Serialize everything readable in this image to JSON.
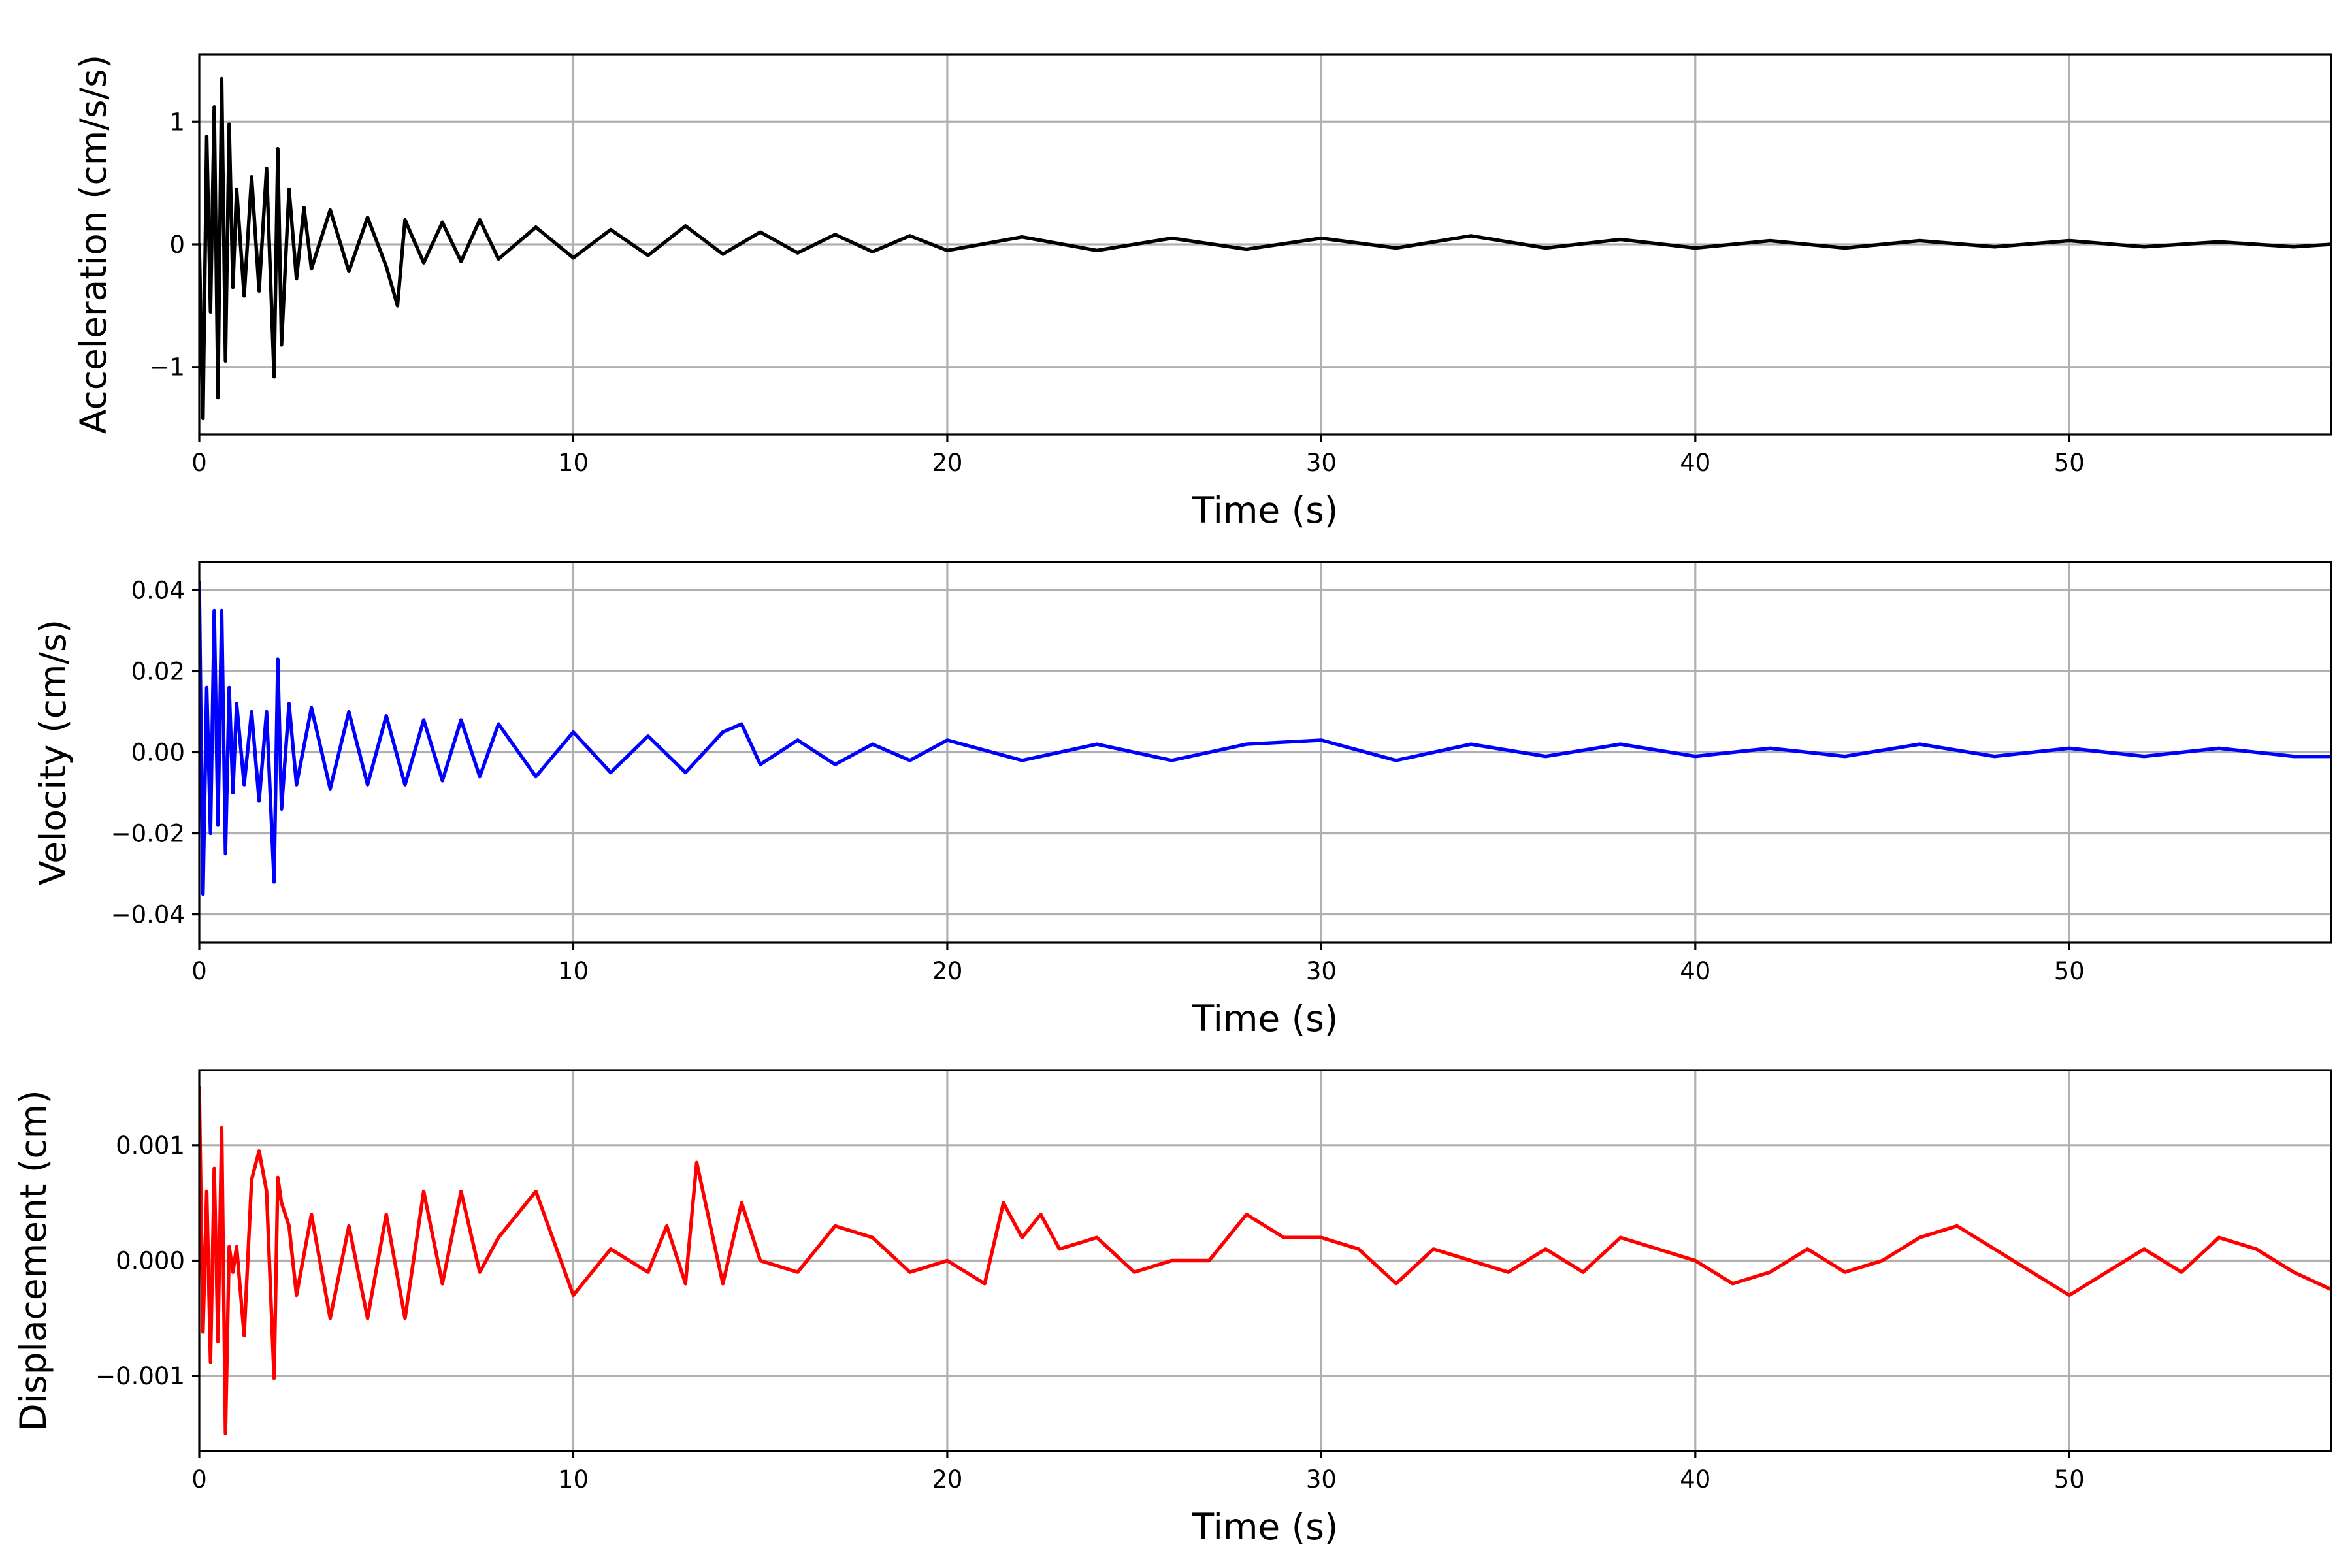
{
  "chart_data": [
    {
      "type": "line",
      "xlabel": "Time (s)",
      "ylabel": "Acceleration (cm/s/s)",
      "xlim": [
        0,
        57
      ],
      "ylim": [
        -1.55,
        1.55
      ],
      "xticks": [
        0,
        10,
        20,
        30,
        40,
        50
      ],
      "xtick_labels": [
        "0",
        "10",
        "20",
        "30",
        "40",
        "50"
      ],
      "yticks": [
        -1,
        0,
        1
      ],
      "ytick_labels": [
        "−1",
        "0",
        "1"
      ],
      "grid": true,
      "color": "#000000",
      "series": [
        {
          "x": [
            0,
            0.1,
            0.2,
            0.3,
            0.4,
            0.5,
            0.6,
            0.7,
            0.8,
            0.9,
            1.0,
            1.2,
            1.4,
            1.6,
            1.8,
            2.0,
            2.1,
            2.2,
            2.4,
            2.6,
            2.8,
            3.0,
            3.5,
            4.0,
            4.5,
            5.0,
            5.3,
            5.5,
            6.0,
            6.5,
            7.0,
            7.5,
            8.0,
            9.0,
            10,
            11,
            12,
            13,
            14,
            15,
            16,
            17,
            18,
            19,
            20,
            22,
            24,
            26,
            28,
            30,
            32,
            34,
            36,
            38,
            40,
            42,
            44,
            46,
            48,
            50,
            52,
            54,
            56,
            57
          ],
          "y": [
            0,
            -1.42,
            0.88,
            -0.55,
            1.12,
            -1.25,
            1.35,
            -0.95,
            0.98,
            -0.35,
            0.45,
            -0.42,
            0.55,
            -0.38,
            0.62,
            -1.08,
            0.78,
            -0.82,
            0.45,
            -0.28,
            0.3,
            -0.2,
            0.28,
            -0.22,
            0.22,
            -0.18,
            -0.5,
            0.2,
            -0.15,
            0.18,
            -0.14,
            0.2,
            -0.12,
            0.14,
            -0.11,
            0.12,
            -0.09,
            0.15,
            -0.08,
            0.1,
            -0.07,
            0.08,
            -0.06,
            0.07,
            -0.05,
            0.06,
            -0.05,
            0.05,
            -0.04,
            0.05,
            -0.03,
            0.07,
            -0.03,
            0.04,
            -0.03,
            0.03,
            -0.03,
            0.03,
            -0.02,
            0.03,
            -0.02,
            0.02,
            -0.02,
            0
          ]
        }
      ]
    },
    {
      "type": "line",
      "xlabel": "Time (s)",
      "ylabel": "Velocity (cm/s)",
      "xlim": [
        0,
        57
      ],
      "ylim": [
        -0.047,
        0.047
      ],
      "xticks": [
        0,
        10,
        20,
        30,
        40,
        50
      ],
      "xtick_labels": [
        "0",
        "10",
        "20",
        "30",
        "40",
        "50"
      ],
      "yticks": [
        -0.04,
        -0.02,
        0.0,
        0.02,
        0.04
      ],
      "ytick_labels": [
        "−0.04",
        "−0.02",
        "0.00",
        "0.02",
        "0.04"
      ],
      "grid": true,
      "color": "#0000ff",
      "series": [
        {
          "x": [
            0,
            0.1,
            0.2,
            0.3,
            0.4,
            0.5,
            0.6,
            0.7,
            0.8,
            0.9,
            1.0,
            1.2,
            1.4,
            1.6,
            1.8,
            2.0,
            2.1,
            2.2,
            2.4,
            2.6,
            3.0,
            3.5,
            4.0,
            4.5,
            5.0,
            5.5,
            6.0,
            6.5,
            7.0,
            7.5,
            8.0,
            9.0,
            10,
            11,
            12,
            13,
            14,
            14.5,
            15,
            16,
            17,
            18,
            19,
            20,
            22,
            24,
            26,
            28,
            30,
            32,
            34,
            36,
            38,
            40,
            42,
            44,
            46,
            48,
            50,
            52,
            54,
            56,
            57
          ],
          "y": [
            0.042,
            -0.035,
            0.016,
            -0.02,
            0.035,
            -0.018,
            0.035,
            -0.025,
            0.016,
            -0.01,
            0.012,
            -0.008,
            0.01,
            -0.012,
            0.01,
            -0.032,
            0.023,
            -0.014,
            0.012,
            -0.008,
            0.011,
            -0.009,
            0.01,
            -0.008,
            0.009,
            -0.008,
            0.008,
            -0.007,
            0.008,
            -0.006,
            0.007,
            -0.006,
            0.005,
            -0.005,
            0.004,
            -0.005,
            0.005,
            0.007,
            -0.003,
            0.003,
            -0.003,
            0.002,
            -0.002,
            0.003,
            -0.002,
            0.002,
            -0.002,
            0.002,
            0.003,
            -0.002,
            0.002,
            -0.001,
            0.002,
            -0.001,
            0.001,
            -0.001,
            0.002,
            -0.001,
            0.001,
            -0.001,
            0.001,
            -0.001,
            -0.001
          ]
        }
      ]
    },
    {
      "type": "line",
      "xlabel": "Time (s)",
      "ylabel": "Displacement (cm)",
      "xlim": [
        0,
        57
      ],
      "ylim": [
        -0.00165,
        0.00165
      ],
      "xticks": [
        0,
        10,
        20,
        30,
        40,
        50
      ],
      "xtick_labels": [
        "0",
        "10",
        "20",
        "30",
        "40",
        "50"
      ],
      "yticks": [
        -0.001,
        0.0,
        0.001
      ],
      "ytick_labels": [
        "−0.001",
        "0.000",
        "0.001"
      ],
      "grid": true,
      "color": "#ff0000",
      "series": [
        {
          "x": [
            0,
            0.1,
            0.2,
            0.3,
            0.4,
            0.5,
            0.6,
            0.7,
            0.8,
            0.9,
            1.0,
            1.2,
            1.4,
            1.6,
            1.8,
            2.0,
            2.1,
            2.2,
            2.4,
            2.6,
            3.0,
            3.5,
            4.0,
            4.5,
            5.0,
            5.5,
            6.0,
            6.5,
            7.0,
            7.5,
            8.0,
            9.0,
            10,
            11,
            12,
            12.5,
            13,
            13.3,
            14,
            14.5,
            15,
            16,
            17,
            18,
            19,
            20,
            21,
            21.5,
            22,
            22.5,
            23,
            24,
            25,
            26,
            27,
            28,
            29,
            30,
            31,
            32,
            33,
            34,
            35,
            36,
            37,
            38,
            39,
            40,
            41,
            42,
            43,
            44,
            45,
            46,
            47,
            48,
            49,
            50,
            51,
            52,
            53,
            54,
            55,
            56,
            57
          ],
          "y": [
            0.0015,
            -0.00062,
            0.0006,
            -0.00088,
            0.0008,
            -0.0007,
            0.00115,
            -0.0015,
            0.00012,
            -0.0001,
            0.00012,
            -0.00065,
            0.0007,
            0.00095,
            0.0006,
            -0.00102,
            0.00072,
            0.0005,
            0.0003,
            -0.0003,
            0.0004,
            -0.0005,
            0.0003,
            -0.0005,
            0.0004,
            -0.0005,
            0.0006,
            -0.0002,
            0.0006,
            -0.0001,
            0.0002,
            0.0006,
            -0.0003,
            0.0001,
            -0.0001,
            0.0003,
            -0.0002,
            0.00085,
            -0.0002,
            0.0005,
            0.0,
            -0.0001,
            0.0003,
            0.0002,
            -0.0001,
            0.0,
            -0.0002,
            0.0005,
            0.0002,
            0.0004,
            0.0001,
            0.0002,
            -0.0001,
            0.0,
            0.0,
            0.0004,
            0.0002,
            0.0002,
            0.0001,
            -0.0002,
            0.0001,
            0.0,
            -0.0001,
            0.0001,
            -0.0001,
            0.0002,
            0.0001,
            0.0,
            -0.0002,
            -0.0001,
            0.0001,
            -0.0001,
            0.0,
            0.0002,
            0.0003,
            0.0001,
            -0.0001,
            -0.0003,
            -0.0001,
            0.0001,
            -0.0001,
            0.0002,
            0.0001,
            -0.0001,
            -0.00025
          ]
        }
      ]
    }
  ]
}
